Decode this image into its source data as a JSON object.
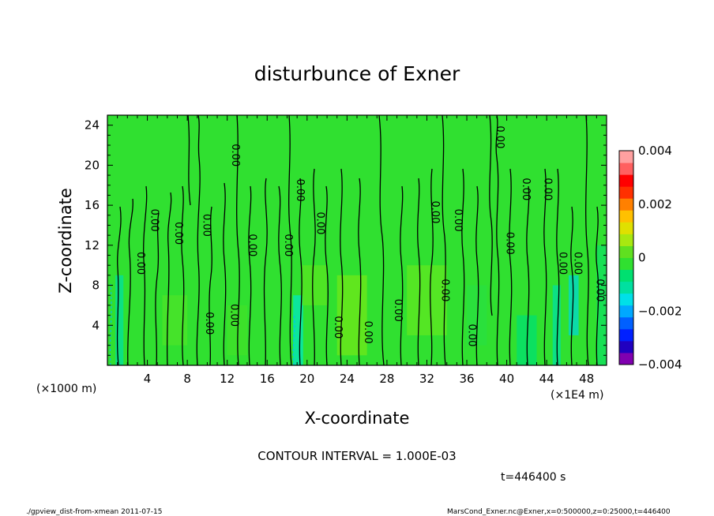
{
  "chart_data": {
    "type": "heatmap",
    "title": "disturbunce of Exner",
    "xlabel": "X-coordinate",
    "ylabel": "Z-coordinate",
    "x_unit_note": "(×1E4 m)",
    "y_unit_note": "(×1000 m)",
    "xlim": [
      0,
      50
    ],
    "ylim": [
      0,
      25
    ],
    "x_ticks": [
      4,
      8,
      12,
      16,
      20,
      24,
      28,
      32,
      36,
      40,
      44,
      48
    ],
    "y_ticks": [
      4,
      8,
      12,
      16,
      20,
      24
    ],
    "colorbar": {
      "min": -0.004,
      "max": 0.004,
      "labels": [
        "0.004",
        "0.002",
        "0",
        "−0.002",
        "−0.004"
      ],
      "label_values": [
        0.004,
        0.002,
        0,
        -0.002,
        -0.004
      ],
      "colors": [
        "#8000b0",
        "#2000c0",
        "#0020ff",
        "#0060ff",
        "#00a8ff",
        "#00e0e8",
        "#00e0a0",
        "#00e070",
        "#30e030",
        "#60e020",
        "#a8e810",
        "#e0e000",
        "#ffc000",
        "#ff8000",
        "#ff3000",
        "#ff0000",
        "#ff6060",
        "#ffa0a0"
      ]
    },
    "contour_label": "0.00",
    "contour_label_positions": [
      {
        "x": 3.0,
        "y": 10.2
      },
      {
        "x": 4.4,
        "y": 14.5
      },
      {
        "x": 6.8,
        "y": 13.2
      },
      {
        "x": 9.6,
        "y": 14.0
      },
      {
        "x": 9.9,
        "y": 4.2
      },
      {
        "x": 12.5,
        "y": 21.0
      },
      {
        "x": 12.4,
        "y": 5.0
      },
      {
        "x": 14.2,
        "y": 12.0
      },
      {
        "x": 17.8,
        "y": 12.0
      },
      {
        "x": 19.0,
        "y": 17.5
      },
      {
        "x": 21.0,
        "y": 14.2
      },
      {
        "x": 22.8,
        "y": 3.8
      },
      {
        "x": 25.8,
        "y": 3.3
      },
      {
        "x": 28.8,
        "y": 5.5
      },
      {
        "x": 32.5,
        "y": 15.3
      },
      {
        "x": 34.8,
        "y": 14.5
      },
      {
        "x": 33.5,
        "y": 7.5
      },
      {
        "x": 36.2,
        "y": 3.0
      },
      {
        "x": 39.0,
        "y": 22.8
      },
      {
        "x": 40.0,
        "y": 12.2
      },
      {
        "x": 41.6,
        "y": 17.6
      },
      {
        "x": 43.8,
        "y": 17.6
      },
      {
        "x": 45.3,
        "y": 10.2
      },
      {
        "x": 46.8,
        "y": 10.2
      },
      {
        "x": 49.0,
        "y": 7.5
      }
    ]
  },
  "contour_interval": "CONTOUR INTERVAL = 1.000E-03",
  "time_label": "t=446400 s",
  "footer_left": "./gpview_dist-from-xmean  2011-07-15",
  "footer_right": "MarsCond_Exner.nc@Exner,x=0:500000,z=0:25000,t=446400"
}
